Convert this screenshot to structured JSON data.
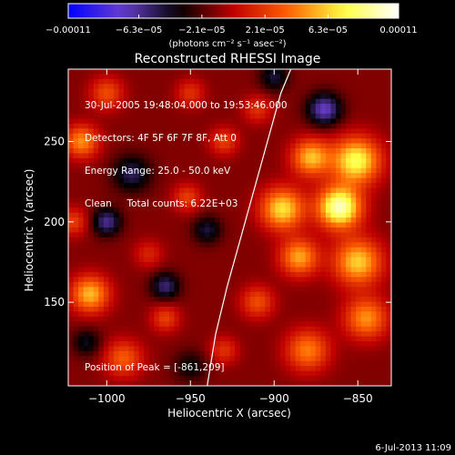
{
  "chart_data": {
    "type": "heatmap",
    "title": "Reconstructed RHESSI Image",
    "xlabel": "Heliocentric X (arcsec)",
    "ylabel": "Heliocentric Y (arcsec)",
    "xlim": [
      -1023,
      -830
    ],
    "ylim": [
      98,
      295
    ],
    "x_ticks": [
      -1000,
      -950,
      -900,
      -850
    ],
    "x_tick_labels": [
      "−1000",
      "−950",
      "−900",
      "−850"
    ],
    "y_ticks": [
      150,
      200,
      250
    ],
    "y_tick_labels": [
      "150",
      "200",
      "250"
    ],
    "colorbar": {
      "range": [
        -0.00011,
        0.00011
      ],
      "ticks": [
        -0.00011,
        -6.3e-05,
        -2.1e-05,
        2.1e-05,
        6.3e-05,
        0.00011
      ],
      "tick_labels": [
        "−0.00011",
        "−6.3e−05",
        "−2.1e−05",
        "2.1e−05",
        "6.3e−05",
        "0.00011"
      ],
      "unit_label": "(photons cm⁻² s⁻¹ asec⁻²)",
      "colors": [
        "#0000ff",
        "#6a3fcf",
        "#000000",
        "#c00000",
        "#ff6000",
        "#ffff40",
        "#ffffff"
      ]
    },
    "annotations": [
      "30-Jul-2005 19:48:04.000 to 19:53:46.000",
      "Detectors: 4F 5F 6F 7F 8F, Att 0",
      "Energy Range: 25.0 - 50.0 keV",
      "Clean     Total counts: 6.22E+03"
    ],
    "peak_label": "Position of Peak = [-861,209]",
    "peak": {
      "x": -861,
      "y": 209
    },
    "limb_curve": {
      "x": [
        -940,
        -935,
        -928,
        -920,
        -912,
        -904,
        -896,
        -890
      ],
      "y": [
        98,
        130,
        160,
        190,
        220,
        250,
        280,
        295
      ]
    },
    "sources": [
      {
        "x": -861,
        "y": 209,
        "value": 0.00011,
        "sigma": 9
      },
      {
        "x": -851,
        "y": 238,
        "value": 9e-05,
        "sigma": 10
      },
      {
        "x": -878,
        "y": 240,
        "value": 7e-05,
        "sigma": 8
      },
      {
        "x": -895,
        "y": 208,
        "value": 8e-05,
        "sigma": 9
      },
      {
        "x": -885,
        "y": 178,
        "value": 6.5e-05,
        "sigma": 8
      },
      {
        "x": -850,
        "y": 175,
        "value": 7.5e-05,
        "sigma": 10
      },
      {
        "x": -845,
        "y": 140,
        "value": 6e-05,
        "sigma": 9
      },
      {
        "x": -880,
        "y": 120,
        "value": 5.5e-05,
        "sigma": 9
      },
      {
        "x": -910,
        "y": 150,
        "value": 4e-05,
        "sigma": 7
      },
      {
        "x": -1010,
        "y": 155,
        "value": 7e-05,
        "sigma": 8
      },
      {
        "x": -990,
        "y": 115,
        "value": 4.5e-05,
        "sigma": 8
      },
      {
        "x": -1015,
        "y": 250,
        "value": 6e-05,
        "sigma": 7
      },
      {
        "x": -1000,
        "y": 280,
        "value": 4e-05,
        "sigma": 7
      },
      {
        "x": -1020,
        "y": 200,
        "value": 3.5e-05,
        "sigma": 6
      },
      {
        "x": -965,
        "y": 140,
        "value": 3.5e-05,
        "sigma": 6
      },
      {
        "x": -952,
        "y": 215,
        "value": 3.5e-05,
        "sigma": 6
      },
      {
        "x": -930,
        "y": 250,
        "value": 3.5e-05,
        "sigma": 6
      },
      {
        "x": -950,
        "y": 280,
        "value": 3e-05,
        "sigma": 6
      },
      {
        "x": -910,
        "y": 270,
        "value": 3e-05,
        "sigma": 6
      },
      {
        "x": -975,
        "y": 180,
        "value": 2.5e-05,
        "sigma": 6
      },
      {
        "x": -930,
        "y": 120,
        "value": 3e-05,
        "sigma": 6
      },
      {
        "x": -985,
        "y": 230,
        "value": -4e-05,
        "sigma": 8
      },
      {
        "x": -1000,
        "y": 200,
        "value": -5e-05,
        "sigma": 6
      },
      {
        "x": -965,
        "y": 160,
        "value": -4.5e-05,
        "sigma": 6
      },
      {
        "x": -940,
        "y": 195,
        "value": -3.5e-05,
        "sigma": 6
      },
      {
        "x": -870,
        "y": 270,
        "value": -6e-05,
        "sigma": 7
      },
      {
        "x": -900,
        "y": 290,
        "value": -3.5e-05,
        "sigma": 6
      },
      {
        "x": -1012,
        "y": 125,
        "value": -3e-05,
        "sigma": 6
      },
      {
        "x": -950,
        "y": 110,
        "value": -2.5e-05,
        "sigma": 7
      }
    ]
  },
  "footer": {
    "date": "6-Jul-2013 11:09"
  }
}
